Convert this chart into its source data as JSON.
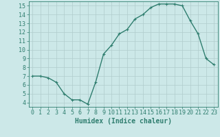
{
  "x": [
    0,
    1,
    2,
    3,
    4,
    5,
    6,
    7,
    8,
    9,
    10,
    11,
    12,
    13,
    14,
    15,
    16,
    17,
    18,
    19,
    20,
    21,
    22,
    23
  ],
  "y": [
    7.0,
    7.0,
    6.8,
    6.3,
    5.0,
    4.3,
    4.3,
    3.8,
    6.3,
    9.5,
    10.5,
    11.8,
    12.3,
    13.5,
    14.0,
    14.8,
    15.2,
    15.2,
    15.2,
    15.0,
    13.3,
    11.8,
    9.0,
    8.3
  ],
  "line_color": "#2e7d6e",
  "marker": "+",
  "marker_size": 3.5,
  "bg_color": "#cce8e8",
  "grid_color": "#b0cccc",
  "xlabel": "Humidex (Indice chaleur)",
  "xlim": [
    -0.5,
    23.5
  ],
  "ylim": [
    3.5,
    15.5
  ],
  "yticks": [
    4,
    5,
    6,
    7,
    8,
    9,
    10,
    11,
    12,
    13,
    14,
    15
  ],
  "xticks": [
    0,
    1,
    2,
    3,
    4,
    5,
    6,
    7,
    8,
    9,
    10,
    11,
    12,
    13,
    14,
    15,
    16,
    17,
    18,
    19,
    20,
    21,
    22,
    23
  ],
  "tick_color": "#2e7d6e",
  "axis_color": "#2e7d6e",
  "xlabel_fontsize": 7,
  "tick_fontsize": 6,
  "line_width": 1.0,
  "marker_edge_width": 0.8
}
